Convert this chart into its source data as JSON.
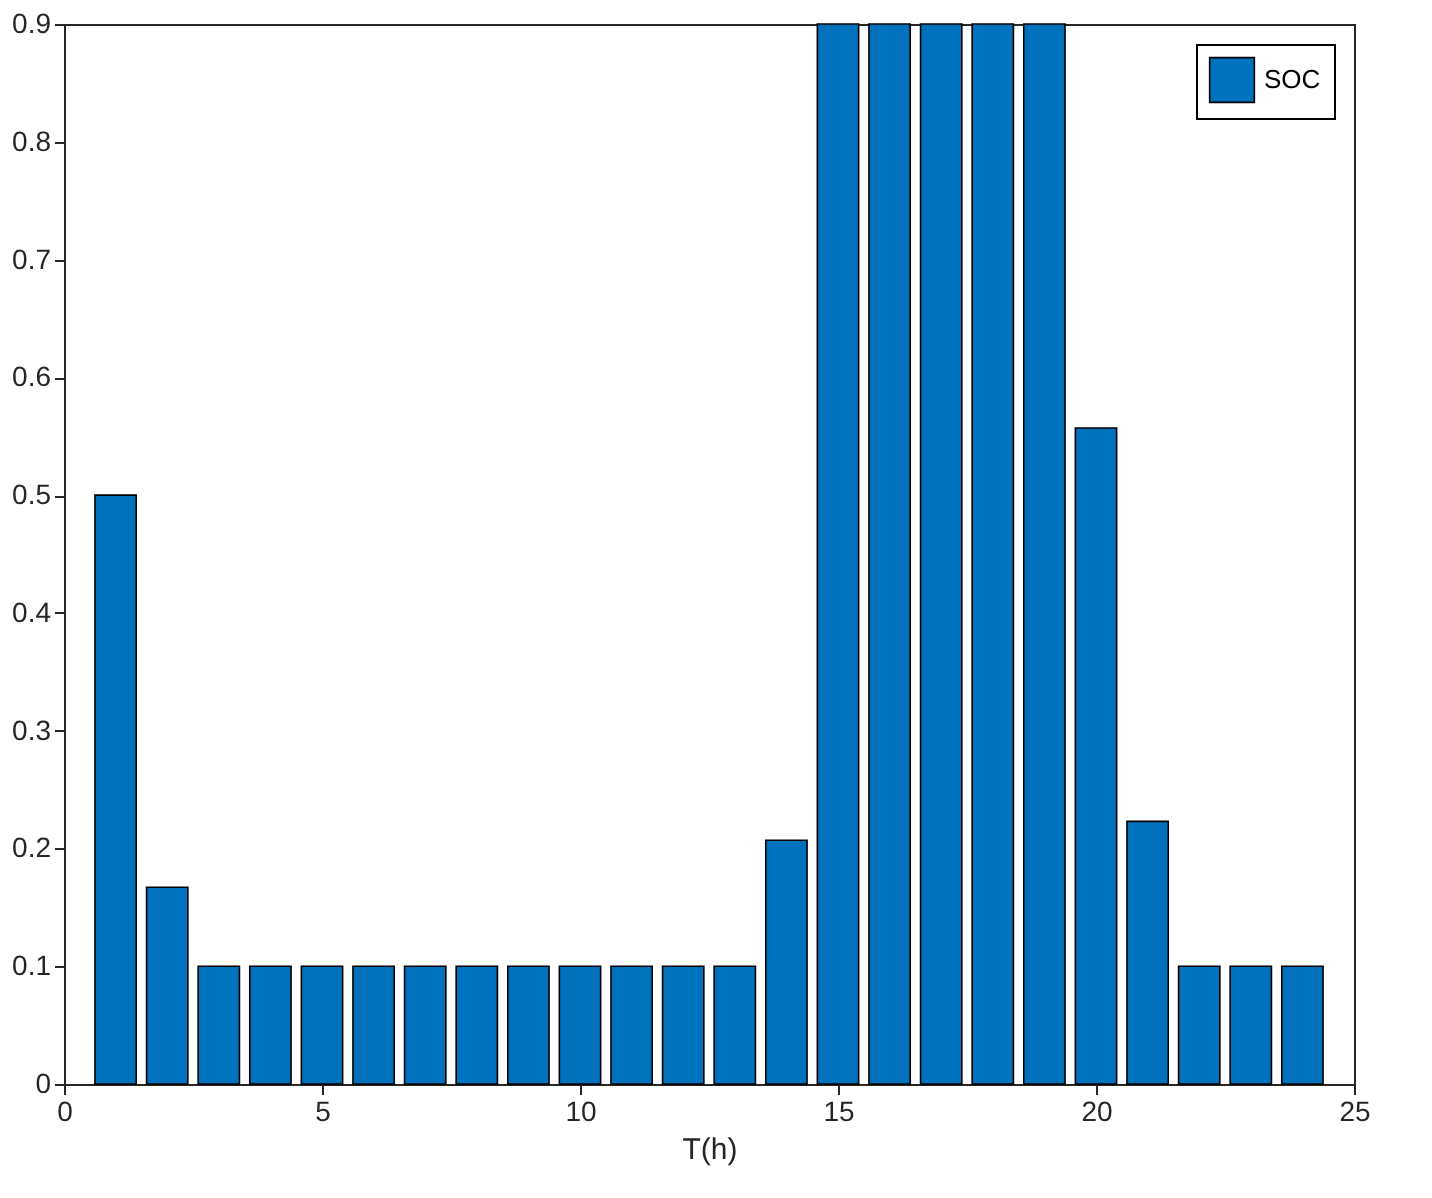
{
  "chart_data": {
    "type": "bar",
    "xlabel": "T(h)",
    "x": [
      1,
      2,
      3,
      4,
      5,
      6,
      7,
      8,
      9,
      10,
      11,
      12,
      13,
      14,
      15,
      16,
      17,
      18,
      19,
      20,
      21,
      22,
      23,
      24
    ],
    "series": [
      {
        "name": "SOC",
        "color": "#0072bd",
        "values": [
          0.5,
          0.167,
          0.1,
          0.1,
          0.1,
          0.1,
          0.1,
          0.1,
          0.1,
          0.1,
          0.1,
          0.1,
          0.1,
          0.207,
          0.9,
          0.9,
          0.9,
          0.9,
          0.9,
          0.557,
          0.223,
          0.1,
          0.1,
          0.1
        ]
      }
    ],
    "xlim": [
      0,
      25
    ],
    "xticks": [
      0,
      5,
      10,
      15,
      20,
      25
    ],
    "ylim": [
      0,
      0.9
    ],
    "yticks": [
      0,
      0.1,
      0.2,
      0.3,
      0.4,
      0.5,
      0.6,
      0.7,
      0.8,
      0.9
    ],
    "legend": "top right",
    "grid": false
  }
}
